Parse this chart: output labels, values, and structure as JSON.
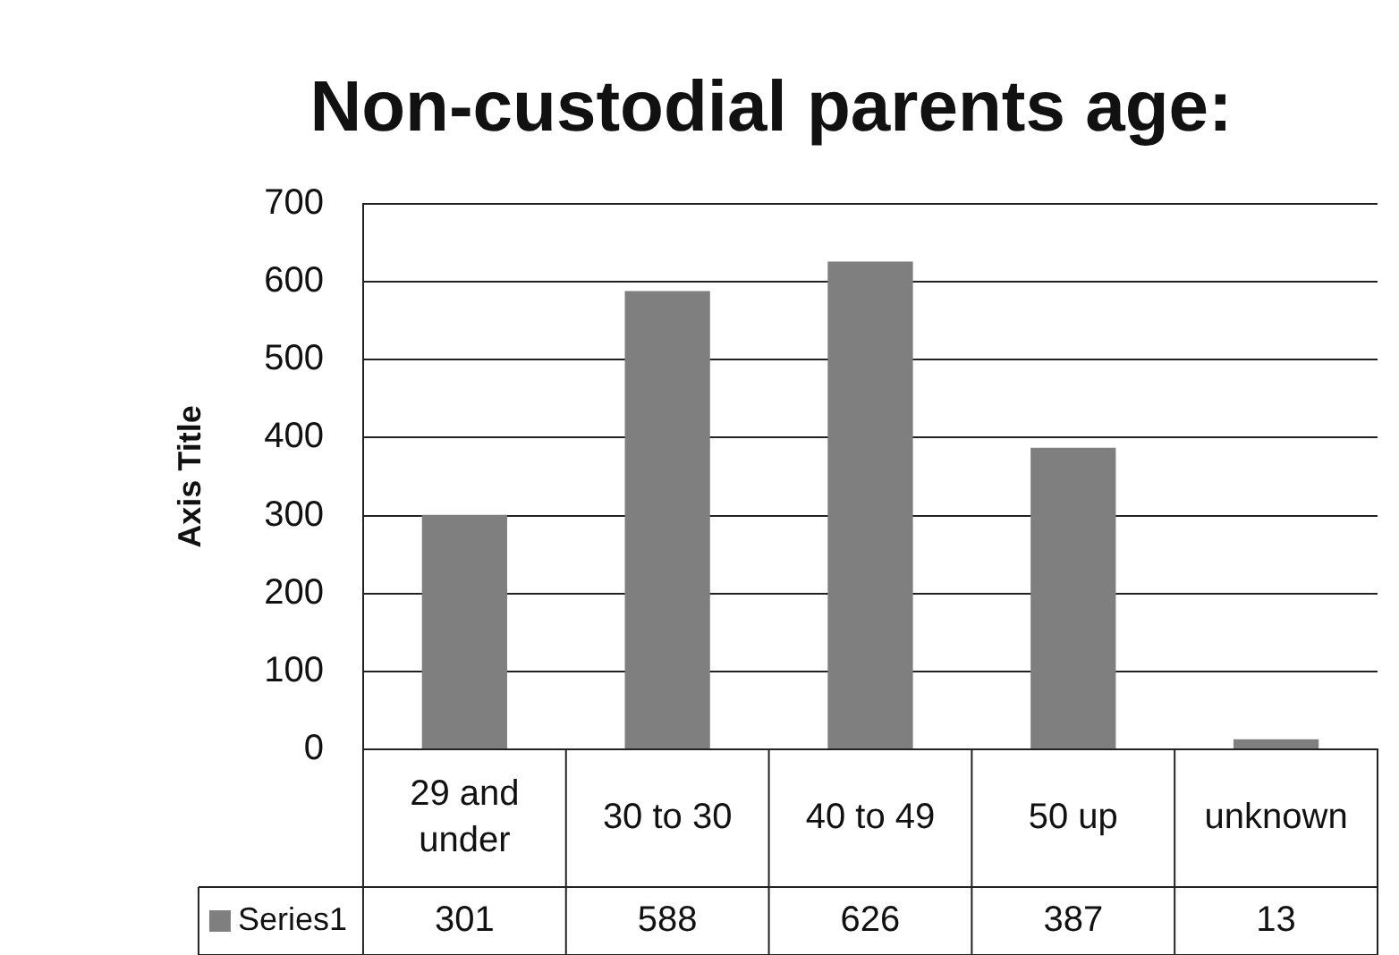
{
  "chart_data": {
    "type": "bar",
    "title": "Non-custodial parents age:",
    "ylabel": "Axis Title",
    "categories": [
      "29 and under",
      "30 to 30",
      "40 to 49",
      "50 up",
      "unknown"
    ],
    "series": [
      {
        "name": "Series1",
        "color": "#7f7f7f",
        "values": [
          301,
          588,
          626,
          387,
          13
        ]
      }
    ],
    "ylim": [
      0,
      700
    ],
    "yticks": [
      0,
      100,
      200,
      300,
      400,
      500,
      600,
      700
    ],
    "grid": "y",
    "legend": "bottom",
    "data_labels": true
  }
}
